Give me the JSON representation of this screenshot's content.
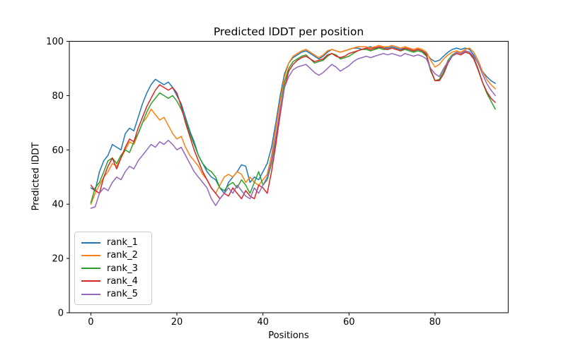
{
  "figure": {
    "title": "Predicted lDDT per position"
  },
  "chart_data": {
    "type": "line",
    "title": "Predicted lDDT per position",
    "xlabel": "Positions",
    "ylabel": "Predicted lDDT",
    "xlim": [
      -5,
      97
    ],
    "ylim": [
      0,
      100
    ],
    "xticks": [
      0,
      20,
      40,
      60,
      80
    ],
    "yticks": [
      0,
      20,
      40,
      60,
      80,
      100
    ],
    "grid": false,
    "legend_position": "lower left",
    "x": [
      0,
      1,
      2,
      3,
      4,
      5,
      6,
      7,
      8,
      9,
      10,
      11,
      12,
      13,
      14,
      15,
      16,
      17,
      18,
      19,
      20,
      21,
      22,
      23,
      24,
      25,
      26,
      27,
      28,
      29,
      30,
      31,
      32,
      33,
      34,
      35,
      36,
      37,
      38,
      39,
      40,
      41,
      42,
      43,
      44,
      45,
      46,
      47,
      48,
      49,
      50,
      51,
      52,
      53,
      54,
      55,
      56,
      57,
      58,
      59,
      60,
      61,
      62,
      63,
      64,
      65,
      66,
      67,
      68,
      69,
      70,
      71,
      72,
      73,
      74,
      75,
      76,
      77,
      78,
      79,
      80,
      81,
      82,
      83,
      84,
      85,
      86,
      87,
      88,
      89,
      90,
      91,
      92,
      93,
      94
    ],
    "series": [
      {
        "name": "rank_1",
        "color": "#1f77b4",
        "values": [
          46,
          45,
          52,
          56,
          58,
          62,
          61,
          60,
          66,
          68,
          67,
          72,
          77,
          81,
          84,
          86,
          85,
          84,
          85,
          83,
          80,
          77,
          72,
          67,
          63,
          58,
          55,
          52,
          50,
          49,
          46,
          44,
          48,
          50,
          52,
          54.5,
          54,
          48,
          50,
          49,
          52,
          55,
          61,
          70,
          80,
          88,
          92,
          94,
          95,
          96,
          96.5,
          95.5,
          94.5,
          93.5,
          94.5,
          96,
          97,
          96.5,
          96,
          96.5,
          97,
          97.5,
          97.5,
          97,
          97.5,
          98,
          97.5,
          97.5,
          98,
          97.5,
          98,
          97.5,
          97,
          97.5,
          97,
          96.5,
          97,
          96.5,
          95.5,
          93.5,
          92.5,
          93,
          94.5,
          96,
          97,
          97.5,
          97,
          97.5,
          97,
          95,
          92,
          89,
          87,
          85.5,
          84.5
        ]
      },
      {
        "name": "rank_2",
        "color": "#ff7f0e",
        "values": [
          40,
          44,
          47,
          50,
          52,
          55,
          54,
          57,
          60,
          63,
          62,
          66,
          70,
          72,
          75,
          73,
          71,
          72,
          69,
          66,
          64,
          65,
          61,
          58,
          56,
          54,
          51,
          49,
          46,
          44,
          47,
          50,
          51,
          50,
          52,
          51,
          48,
          50,
          48,
          47,
          49,
          51,
          58,
          68,
          78,
          87,
          92,
          94.5,
          95.5,
          96.5,
          97,
          96,
          95,
          94,
          95,
          96.5,
          97,
          96.5,
          96,
          96.5,
          97,
          97.5,
          98,
          98,
          98,
          97.5,
          98,
          98.5,
          98,
          98,
          98.5,
          98,
          97.5,
          98,
          97.5,
          97,
          97.5,
          97,
          96,
          93,
          90.5,
          91.5,
          93.5,
          95,
          96,
          96.5,
          96,
          97,
          97.5,
          96,
          93,
          89,
          86,
          84,
          82.5
        ]
      },
      {
        "name": "rank_3",
        "color": "#2ca02c",
        "values": [
          40.5,
          46,
          48,
          52,
          56,
          57,
          55,
          58,
          60,
          59,
          63,
          66,
          70,
          74,
          77,
          79,
          81,
          80,
          79,
          80,
          78,
          75,
          71,
          66,
          62,
          58,
          55,
          53,
          52,
          50,
          46,
          45,
          47,
          48,
          46,
          49,
          47,
          44,
          48,
          52,
          47,
          49,
          55,
          64,
          75,
          85,
          90,
          92.5,
          93.5,
          94.5,
          95,
          93.5,
          92,
          92.5,
          93,
          94.5,
          95.5,
          95,
          93.5,
          94,
          94.5,
          95.5,
          96.5,
          97,
          97,
          96.5,
          97,
          97.5,
          97,
          97,
          97.5,
          97,
          96.5,
          97,
          96.5,
          96,
          96.5,
          96,
          94.5,
          89,
          85.5,
          86,
          89,
          93,
          95,
          96,
          95.5,
          96.5,
          96,
          94,
          90,
          85,
          81,
          78,
          75
        ]
      },
      {
        "name": "rank_4",
        "color": "#d62728",
        "values": [
          47,
          45,
          44,
          50,
          54,
          57,
          53,
          57,
          61,
          64,
          63,
          68,
          72,
          76,
          79,
          82,
          84,
          83,
          82,
          83,
          81,
          76,
          70,
          65,
          60,
          56,
          52,
          49,
          46,
          44,
          42,
          44,
          43,
          46,
          44,
          42,
          45,
          43,
          42,
          47,
          46,
          44,
          52,
          62,
          73,
          83,
          89,
          91.5,
          93,
          94,
          94.5,
          93.5,
          92.5,
          93,
          93.5,
          95,
          95.5,
          94.5,
          94,
          94.5,
          95.5,
          96,
          96.5,
          97,
          97.5,
          97,
          97.5,
          98,
          97.5,
          97,
          97.5,
          97,
          96.5,
          97.5,
          97,
          96.5,
          97,
          96.5,
          95,
          89.5,
          85.5,
          85.5,
          88,
          92,
          94.5,
          95.5,
          95,
          96,
          95.5,
          93.5,
          89.5,
          85,
          81.5,
          79,
          77.5
        ]
      },
      {
        "name": "rank_5",
        "color": "#9467bd",
        "values": [
          38.5,
          39,
          44,
          46,
          45,
          48,
          50,
          49,
          52,
          54,
          53,
          56,
          58,
          60,
          62,
          61,
          63,
          62,
          63.5,
          62,
          60,
          61,
          58,
          55,
          52,
          50,
          48,
          46,
          42,
          39.5,
          42,
          44,
          46,
          44,
          47,
          45,
          43,
          42,
          46,
          44,
          47,
          50,
          56,
          65,
          75,
          83,
          87,
          89.5,
          90.5,
          91,
          91.5,
          90,
          88.5,
          87.5,
          88.5,
          90,
          91.5,
          90.5,
          89,
          90,
          91,
          92.5,
          93.5,
          94,
          94.5,
          94,
          94.5,
          95,
          95.5,
          95,
          95.5,
          95,
          94.5,
          95.5,
          95,
          94.5,
          95,
          94.5,
          93.5,
          90,
          88,
          87,
          90,
          92.5,
          94.5,
          96,
          95.5,
          96.5,
          96,
          94.5,
          92,
          88,
          84.5,
          82,
          80
        ]
      }
    ]
  },
  "axes": {
    "spine_color": "#000000",
    "tick_color": "#000000"
  }
}
